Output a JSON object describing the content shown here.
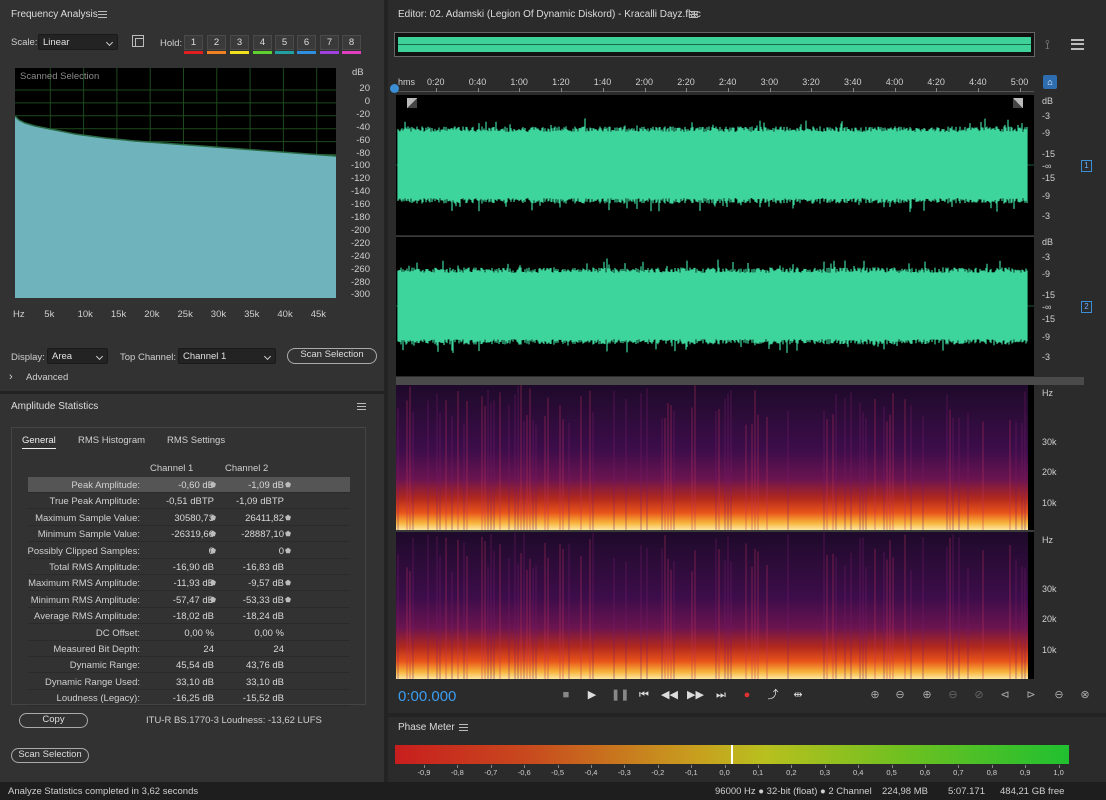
{
  "freq": {
    "title": "Frequency Analysis",
    "scale_label": "Scale:",
    "scale_value": "Linear",
    "hold_label": "Hold:",
    "hold_buttons": [
      "1",
      "2",
      "3",
      "4",
      "5",
      "6",
      "7",
      "8"
    ],
    "hold_colors": [
      "#e02020",
      "#f08020",
      "#f0e020",
      "#60d030",
      "#20a0a0",
      "#3090e0",
      "#a040e0",
      "#e040c0"
    ],
    "graph_label": "Scanned Selection",
    "db_unit": "dB",
    "db_ticks": [
      "20",
      "0",
      "-20",
      "-40",
      "-60",
      "-80",
      "-100",
      "-120",
      "-140",
      "-160",
      "-180",
      "-200",
      "-220",
      "-240",
      "-260",
      "-280",
      "-300"
    ],
    "hz_ticks": [
      "Hz",
      "5k",
      "10k",
      "15k",
      "20k",
      "25k",
      "30k",
      "35k",
      "40k",
      "45k"
    ],
    "display_label": "Display:",
    "display_value": "Area",
    "top_channel_label": "Top Channel:",
    "top_channel_value": "Channel 1",
    "scan_button": "Scan Selection",
    "advanced_label": "Advanced"
  },
  "amp": {
    "title": "Amplitude Statistics",
    "tabs": [
      "General",
      "RMS Histogram",
      "RMS Settings"
    ],
    "col1": "Channel 1",
    "col2": "Channel 2",
    "rows": [
      {
        "name": "Peak Amplitude:",
        "c1": "-0,60 dB",
        "c2": "-1,09 dB",
        "m1": true,
        "m2": true
      },
      {
        "name": "True Peak Amplitude:",
        "c1": "-0,51 dBTP",
        "c2": "-1,09 dBTP",
        "m1": false,
        "m2": false
      },
      {
        "name": "Maximum Sample Value:",
        "c1": "30580,73",
        "c2": "26411,82",
        "m1": true,
        "m2": true
      },
      {
        "name": "Minimum Sample Value:",
        "c1": "-26319,66",
        "c2": "-28887,10",
        "m1": true,
        "m2": true
      },
      {
        "name": "Possibly Clipped Samples:",
        "c1": "0",
        "c2": "0",
        "m1": true,
        "m2": true
      },
      {
        "name": "Total RMS Amplitude:",
        "c1": "-16,90 dB",
        "c2": "-16,83 dB",
        "m1": false,
        "m2": false
      },
      {
        "name": "Maximum RMS Amplitude:",
        "c1": "-11,93 dB",
        "c2": "-9,57 dB",
        "m1": true,
        "m2": true
      },
      {
        "name": "Minimum RMS Amplitude:",
        "c1": "-57,47 dB",
        "c2": "-53,33 dB",
        "m1": true,
        "m2": true
      },
      {
        "name": "Average RMS Amplitude:",
        "c1": "-18,02 dB",
        "c2": "-18,24 dB",
        "m1": false,
        "m2": false
      },
      {
        "name": "DC Offset:",
        "c1": "0,00 %",
        "c2": "0,00 %",
        "m1": false,
        "m2": false
      },
      {
        "name": "Measured Bit Depth:",
        "c1": "24",
        "c2": "24",
        "m1": false,
        "m2": false
      },
      {
        "name": "Dynamic Range:",
        "c1": "45,54 dB",
        "c2": "43,76 dB",
        "m1": false,
        "m2": false
      },
      {
        "name": "Dynamic Range Used:",
        "c1": "33,10 dB",
        "c2": "33,10 dB",
        "m1": false,
        "m2": false
      },
      {
        "name": "Loudness (Legacy):",
        "c1": "-16,25 dB",
        "c2": "-15,52 dB",
        "m1": false,
        "m2": false
      }
    ],
    "copy_button": "Copy",
    "loudness": "ITU-R BS.1770-3 Loudness: -13,62 LUFS",
    "scan_button": "Scan Selection"
  },
  "editor": {
    "title": "Editor: 02. Adamski (Legion Of Dynamic Diskord) - Kracalli Dayz.flac",
    "time_ticks": [
      "hms",
      "0:20",
      "0:40",
      "1:00",
      "1:20",
      "1:40",
      "2:00",
      "2:20",
      "2:40",
      "3:00",
      "3:20",
      "3:40",
      "4:00",
      "4:20",
      "4:40",
      "5:00"
    ],
    "db_unit": "dB",
    "wave_ticks": [
      "-3",
      "-9",
      "-15",
      "-∞",
      "-15",
      "-9",
      "-3"
    ],
    "ch1": "1",
    "ch2": "2",
    "hz_unit": "Hz",
    "spec_ticks": [
      "30k",
      "20k",
      "10k"
    ],
    "current_time": "0:00.000"
  },
  "phase": {
    "title": "Phase Meter",
    "ticks": [
      "-0,9",
      "-0,8",
      "-0,7",
      "-0,6",
      "-0,5",
      "-0,4",
      "-0,3",
      "-0,2",
      "-0,1",
      "0,0",
      "0,1",
      "0,2",
      "0,3",
      "0,4",
      "0,5",
      "0,6",
      "0,7",
      "0,8",
      "0,9",
      "1,0"
    ]
  },
  "status": {
    "message": "Analyze Statistics completed in 3,62 seconds",
    "format": "96000 Hz ● 32-bit (float) ● 2 Channel",
    "size": "224,98 MB",
    "duration": "5:07.171",
    "free": "484,21 GB free"
  }
}
